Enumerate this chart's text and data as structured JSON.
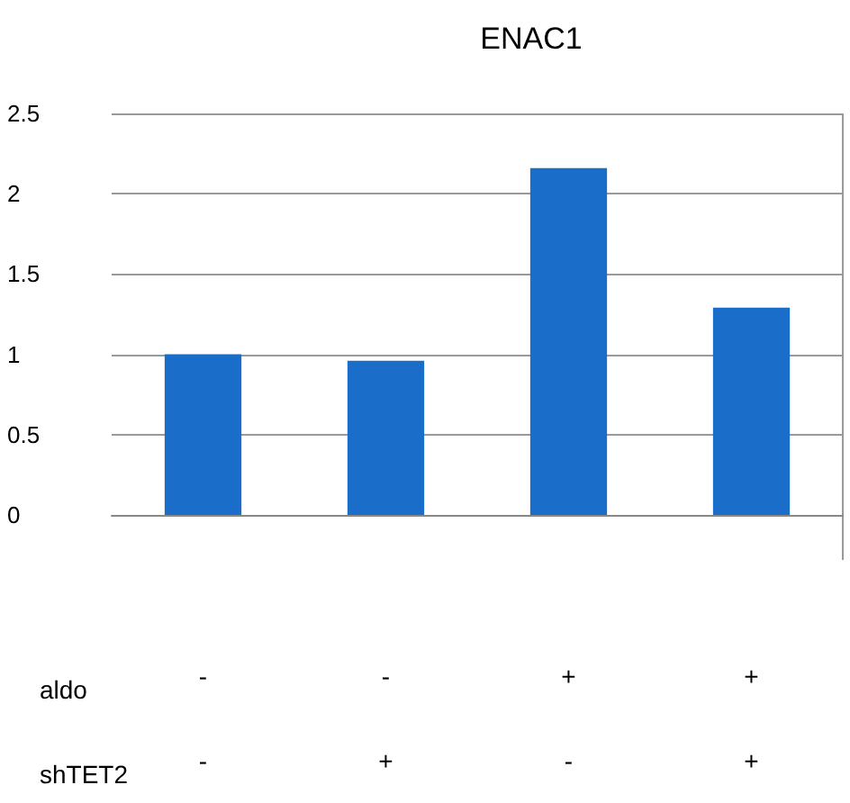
{
  "chart_data": {
    "type": "bar",
    "title": "ENAC1",
    "categories": [
      "-\n-",
      "-\n+",
      "+\n-",
      "+\n+"
    ],
    "values": [
      1.0,
      0.96,
      2.16,
      1.29
    ],
    "color": "#1a6dc8",
    "ylim": [
      0,
      2.5
    ],
    "yticks": [
      0,
      0.5,
      1,
      1.5,
      2,
      2.5
    ],
    "grid": "y",
    "annotations": [
      "aldo",
      "shTET2"
    ]
  }
}
